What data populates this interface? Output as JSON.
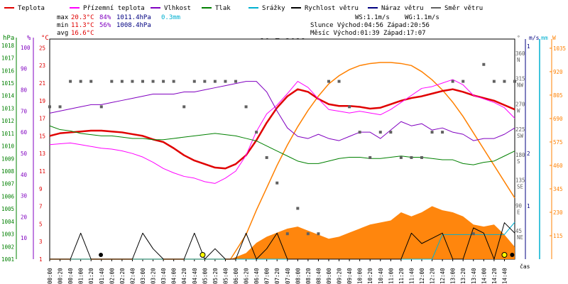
{
  "header": {
    "legend": [
      {
        "label": "Teplota",
        "color": "#e00000"
      },
      {
        "label": "Přízemní teplota",
        "color": "#ff00ff"
      },
      {
        "label": "Vlhkost",
        "color": "#8000c0"
      },
      {
        "label": "Tlak",
        "color": "#008000"
      },
      {
        "label": "Srážky",
        "color": "#00b0d0"
      },
      {
        "label": "Rychlost větru",
        "color": "#000000"
      },
      {
        "label": "Náraz větru",
        "color": "#000080"
      },
      {
        "label": "Směr větru",
        "color": "#606060"
      }
    ],
    "stats": {
      "max_label": "max",
      "max_temp": "20.3°C",
      "max_hum": "84%",
      "max_press": "1011.4hPa",
      "max_rain": "0.3mm",
      "min_label": "min",
      "min_temp": "11.3°C",
      "min_hum": "56%",
      "min_press": "1008.4hPa",
      "avg_label": "avg",
      "avg_temp": "16.6°C"
    },
    "wind": {
      "ws": "WS:1.1m/s",
      "wg": "WG:1.1m/s"
    },
    "sun": "Slunce Východ:04:56 Západ:20:56",
    "moon": "Měsíc  Východ:01:39 Západ:17:07"
  },
  "axes": {
    "left_units": [
      "hPa",
      "%",
      "°C"
    ],
    "right_units": [
      "°",
      "m/s",
      "mm",
      "W"
    ],
    "hpa_ticks": [
      "1018",
      "1017",
      "1016",
      "1015",
      "1014",
      "1013",
      "1012",
      "1011",
      "1010",
      "1009",
      "1008",
      "1007",
      "1006",
      "1005",
      "1004",
      "1003",
      "1002",
      "1001"
    ],
    "pct_ticks": [
      "100",
      "90",
      "80",
      "70",
      "60",
      "50",
      "40",
      "30",
      "20",
      "10"
    ],
    "temp_ticks": [
      "25",
      "23",
      "21",
      "19",
      "17",
      "15",
      "13",
      "11",
      "9",
      "7",
      "5",
      "3",
      "1"
    ],
    "dir_ticks": [
      {
        "deg": "360",
        "dir": "N"
      },
      {
        "deg": "315",
        "dir": "NW"
      },
      {
        "deg": "270",
        "dir": "W"
      },
      {
        "deg": "225",
        "dir": "SW"
      },
      {
        "deg": "180",
        "dir": "S"
      },
      {
        "deg": "135",
        "dir": "SE"
      },
      {
        "deg": "90",
        "dir": "E"
      },
      {
        "deg": "45",
        "dir": "NE"
      }
    ],
    "ms_ticks": [
      "1",
      "2",
      "1"
    ],
    "w_ticks": [
      "1035",
      "920",
      "805",
      "690",
      "575",
      "460",
      "345",
      "230",
      "115"
    ],
    "x_ticks": [
      "00:00",
      "00:20",
      "00:40",
      "01:00",
      "01:20",
      "01:40",
      "02:00",
      "02:20",
      "02:40",
      "03:00",
      "03:20",
      "03:40",
      "04:00",
      "04:20",
      "04:40",
      "05:00",
      "05:20",
      "05:40",
      "06:00",
      "06:20",
      "06:40",
      "07:00",
      "07:20",
      "07:40",
      "08:00",
      "08:20",
      "08:40",
      "09:00",
      "09:20",
      "09:40",
      "10:00",
      "10:20",
      "10:40",
      "11:00",
      "11:20",
      "11:40",
      "12:00",
      "12:20",
      "12:40",
      "13:00",
      "13:20",
      "13:40",
      "14:00",
      "14:20",
      "14:40"
    ],
    "x_suffix": "čas"
  },
  "chart_data": {
    "type": "line",
    "title": "10.7.2018",
    "x_unit": "time",
    "temp_range": [
      1,
      26
    ],
    "pressure_range": [
      1001,
      1018.5
    ],
    "humidity_range": [
      0,
      104
    ],
    "direction_range": [
      0,
      390
    ],
    "solar_range": [
      0,
      1080
    ],
    "series": [
      {
        "name": "Teplota",
        "axis": "temp",
        "color": "#e00000",
        "x": [
          0,
          20,
          40,
          60,
          80,
          100,
          120,
          140,
          160,
          180,
          200,
          220,
          240,
          260,
          280,
          300,
          320,
          340,
          360,
          380,
          400,
          420,
          440,
          460,
          480,
          500,
          520,
          540,
          560,
          580,
          600,
          620,
          640,
          660,
          680,
          700,
          720,
          740,
          760,
          780,
          800,
          820,
          840,
          860,
          880,
          900
        ],
        "y": [
          15.0,
          15.3,
          15.4,
          15.5,
          15.6,
          15.6,
          15.5,
          15.4,
          15.2,
          15.0,
          14.6,
          14.3,
          13.6,
          12.8,
          12.2,
          11.8,
          11.4,
          11.3,
          11.8,
          12.8,
          14.5,
          16.5,
          18.2,
          19.5,
          20.3,
          20.0,
          19.2,
          18.6,
          18.4,
          18.4,
          18.3,
          18.1,
          18.2,
          18.6,
          19.0,
          19.3,
          19.5,
          19.8,
          20.1,
          20.3,
          20.0,
          19.6,
          19.3,
          19.0,
          18.5,
          18.0
        ]
      },
      {
        "name": "Přízemní teplota",
        "axis": "temp",
        "color": "#ff00ff",
        "x": [
          0,
          20,
          40,
          60,
          80,
          100,
          120,
          140,
          160,
          180,
          200,
          220,
          240,
          260,
          280,
          300,
          320,
          340,
          360,
          380,
          400,
          420,
          440,
          460,
          480,
          500,
          520,
          540,
          560,
          580,
          600,
          620,
          640,
          660,
          680,
          700,
          720,
          740,
          760,
          780,
          800,
          820,
          840,
          860,
          880,
          900
        ],
        "y": [
          14.0,
          14.1,
          14.2,
          14.0,
          13.8,
          13.6,
          13.5,
          13.3,
          13.0,
          12.6,
          12.0,
          11.3,
          10.8,
          10.4,
          10.2,
          9.8,
          9.6,
          10.2,
          11.0,
          12.8,
          15.5,
          17.5,
          18.5,
          19.8,
          21.2,
          20.5,
          19.2,
          18.0,
          17.8,
          17.6,
          17.8,
          17.6,
          17.4,
          18.0,
          18.8,
          19.6,
          20.4,
          20.6,
          21.0,
          21.4,
          20.8,
          19.6,
          19.2,
          18.8,
          18.2,
          17.0
        ]
      },
      {
        "name": "Vlhkost",
        "axis": "humidity",
        "color": "#8000c0",
        "x": [
          0,
          20,
          40,
          60,
          80,
          100,
          120,
          140,
          160,
          180,
          200,
          220,
          240,
          260,
          280,
          300,
          320,
          340,
          360,
          380,
          400,
          420,
          440,
          460,
          480,
          500,
          520,
          540,
          560,
          580,
          600,
          620,
          640,
          660,
          680,
          700,
          720,
          740,
          760,
          780,
          800,
          820,
          840,
          860,
          880,
          900
        ],
        "y": [
          69,
          70,
          71,
          72,
          73,
          73,
          74,
          75,
          76,
          77,
          78,
          78,
          78,
          79,
          79,
          80,
          81,
          82,
          83,
          84,
          84,
          79,
          70,
          62,
          58,
          57,
          59,
          57,
          56,
          58,
          60,
          60,
          57,
          61,
          65,
          63,
          64,
          61,
          62,
          60,
          59,
          56,
          57,
          57,
          59,
          62
        ]
      },
      {
        "name": "Tlak",
        "axis": "pressure",
        "color": "#008000",
        "x": [
          0,
          20,
          40,
          60,
          80,
          100,
          120,
          140,
          160,
          180,
          200,
          220,
          240,
          260,
          280,
          300,
          320,
          340,
          360,
          380,
          400,
          420,
          440,
          460,
          480,
          500,
          520,
          540,
          560,
          580,
          600,
          620,
          640,
          660,
          680,
          700,
          720,
          740,
          760,
          780,
          800,
          820,
          840,
          860,
          880,
          900
        ],
        "y": [
          1011.6,
          1011.3,
          1011.2,
          1011.0,
          1010.9,
          1010.8,
          1010.8,
          1010.7,
          1010.6,
          1010.6,
          1010.5,
          1010.5,
          1010.6,
          1010.7,
          1010.8,
          1010.9,
          1011.0,
          1010.9,
          1010.8,
          1010.6,
          1010.4,
          1010.0,
          1009.6,
          1009.2,
          1008.8,
          1008.6,
          1008.6,
          1008.8,
          1009.0,
          1009.1,
          1009.1,
          1009.0,
          1009.0,
          1009.1,
          1009.2,
          1009.1,
          1009.1,
          1009.0,
          1008.9,
          1008.9,
          1008.6,
          1008.5,
          1008.7,
          1008.8,
          1009.2,
          1009.6
        ]
      },
      {
        "name": "Srážky",
        "axis": "rain",
        "color": "#00b0d0",
        "x": [
          0,
          740,
          760,
          780,
          800,
          820,
          840,
          860,
          880,
          900
        ],
        "y": [
          0,
          0,
          0.2,
          0.2,
          0.2,
          0.2,
          0.2,
          0.2,
          0.2,
          0.3
        ]
      },
      {
        "name": "Rychlost větru",
        "axis": "wind",
        "color": "#000000",
        "x": [
          0,
          40,
          60,
          80,
          100,
          120,
          140,
          160,
          180,
          200,
          220,
          240,
          260,
          280,
          300,
          320,
          340,
          360,
          380,
          400,
          420,
          440,
          460,
          480,
          500,
          520,
          540,
          560,
          580,
          600,
          620,
          640,
          660,
          680,
          700,
          720,
          740,
          760,
          780,
          800,
          820,
          840,
          860,
          880,
          900
        ],
        "y": [
          0,
          0,
          1.0,
          0,
          0,
          0,
          0,
          0,
          1.0,
          0.4,
          0,
          0,
          0,
          1.0,
          0,
          0.4,
          0,
          0,
          1.0,
          0,
          0.4,
          1.0,
          0,
          0,
          0,
          0,
          0,
          0,
          0,
          0,
          0,
          0,
          0,
          0,
          1.0,
          0.6,
          0.8,
          1.0,
          0,
          0,
          1.2,
          1.0,
          0,
          1.4,
          1.0
        ]
      },
      {
        "name": "Směr větru",
        "axis": "direction",
        "color": "#606060",
        "x": [
          0,
          20,
          40,
          60,
          80,
          100,
          120,
          140,
          160,
          180,
          200,
          220,
          240,
          260,
          280,
          300,
          320,
          340,
          360,
          380,
          400,
          420,
          440,
          460,
          480,
          500,
          520,
          540,
          560,
          580,
          600,
          620,
          640,
          660,
          680,
          700,
          720,
          740,
          760,
          780,
          800,
          820,
          840,
          860,
          880,
          900
        ],
        "y": [
          270,
          270,
          315,
          315,
          315,
          270,
          315,
          315,
          315,
          315,
          315,
          315,
          315,
          270,
          315,
          315,
          315,
          315,
          315,
          270,
          225,
          180,
          135,
          45,
          90,
          45,
          45,
          315,
          315,
          270,
          225,
          180,
          225,
          225,
          180,
          180,
          180,
          225,
          225,
          315,
          315,
          45,
          345,
          315,
          315,
          315
        ]
      }
    ],
    "solar_radiation": {
      "axis": "solar",
      "color": "#ff8000",
      "x": [
        0,
        350,
        380,
        400,
        420,
        440,
        460,
        480,
        500,
        520,
        540,
        560,
        580,
        600,
        620,
        640,
        660,
        680,
        700,
        720,
        740,
        760,
        780,
        800,
        820,
        840,
        860,
        880,
        900
      ],
      "y": [
        0,
        0,
        30,
        80,
        110,
        130,
        150,
        160,
        140,
        120,
        100,
        110,
        130,
        150,
        170,
        180,
        190,
        230,
        210,
        230,
        260,
        240,
        230,
        210,
        170,
        160,
        170,
        120,
        60
      ],
      "clear_sky_y": [
        0,
        0,
        120,
        240,
        350,
        460,
        560,
        650,
        730,
        800,
        860,
        900,
        930,
        950,
        960,
        965,
        965,
        960,
        950,
        920,
        880,
        830,
        770,
        700,
        620,
        540,
        460,
        380,
        300
      ]
    }
  }
}
